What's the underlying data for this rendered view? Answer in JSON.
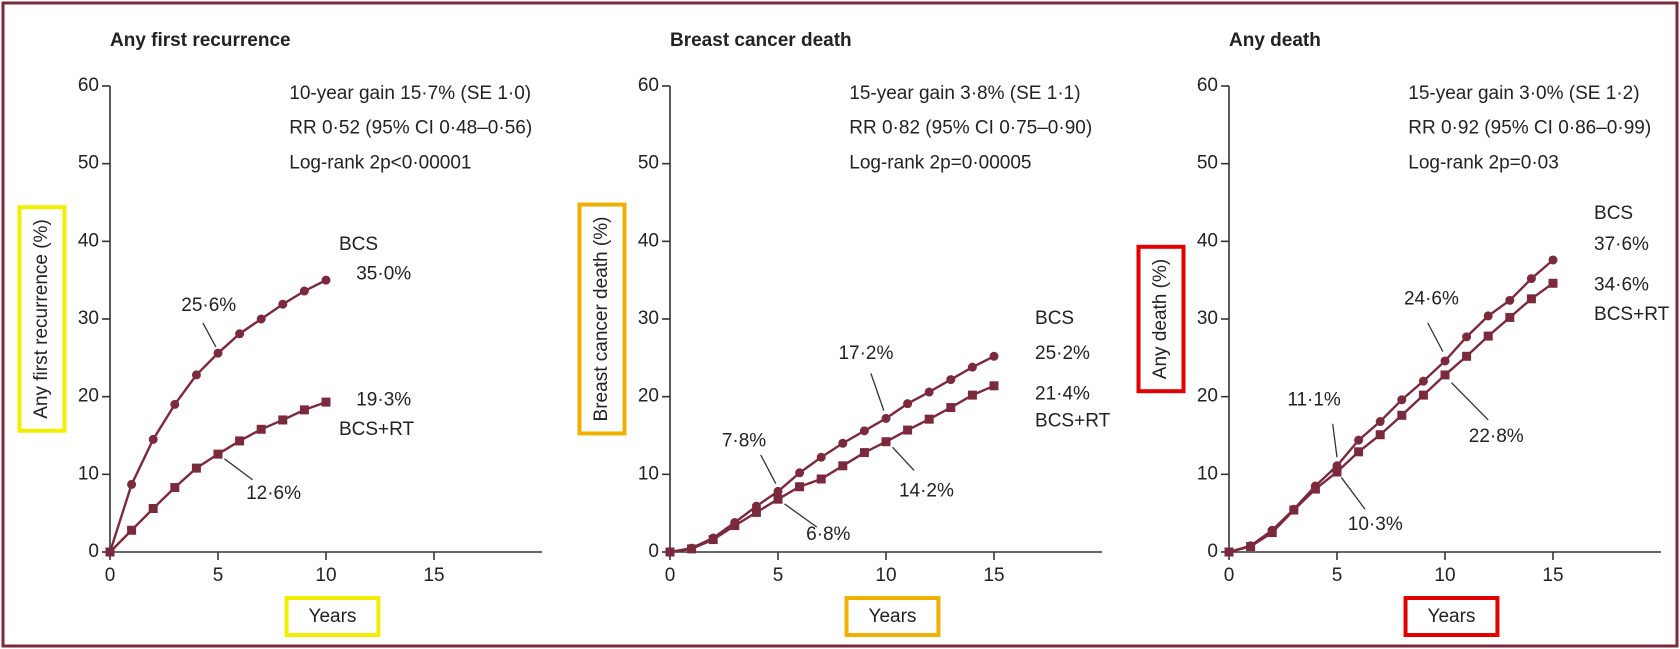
{
  "chart_data": [
    {
      "type": "line",
      "title": "Any first recurrence",
      "xlabel": "Years",
      "ylabel": "Any first recurrence (%)",
      "x": [
        0,
        1,
        2,
        3,
        4,
        5,
        6,
        7,
        8,
        9,
        10
      ],
      "xlim": [
        0,
        20
      ],
      "xticks": [
        0,
        5,
        10,
        15
      ],
      "ylim": [
        0,
        60
      ],
      "yticks": [
        0,
        10,
        20,
        30,
        40,
        50,
        60
      ],
      "series": [
        {
          "name": "BCS",
          "color": "#7a2a3c",
          "marker": "circle",
          "values": [
            0,
            8.7,
            14.5,
            19,
            22.8,
            25.6,
            28.1,
            30,
            31.9,
            33.6,
            35.0
          ]
        },
        {
          "name": "BCS+RT",
          "color": "#7a2a3c",
          "marker": "square",
          "values": [
            0,
            2.8,
            5.6,
            8.3,
            10.8,
            12.6,
            14.3,
            15.8,
            17,
            18.3,
            19.3
          ]
        }
      ],
      "stats": [
        "10-year gain 15·7% (SE 1·0)",
        "RR 0·52 (95% CI 0·48–0·56)",
        "Log-rank 2p<0·00001"
      ],
      "annotations": [
        "25·6%",
        "35·0%",
        "19·3%",
        "12·6%"
      ]
    },
    {
      "type": "line",
      "title": "Breast cancer death",
      "xlabel": "Years",
      "ylabel": "Breast cancer death (%)",
      "x": [
        0,
        1,
        2,
        3,
        4,
        5,
        6,
        7,
        8,
        9,
        10,
        11,
        12,
        13,
        14,
        15
      ],
      "xlim": [
        0,
        20
      ],
      "xticks": [
        0,
        5,
        10,
        15
      ],
      "ylim": [
        0,
        60
      ],
      "yticks": [
        0,
        10,
        20,
        30,
        40,
        50,
        60
      ],
      "series": [
        {
          "name": "BCS",
          "color": "#7a2a3c",
          "marker": "circle",
          "values": [
            0,
            0.5,
            1.8,
            3.8,
            5.9,
            7.8,
            10.2,
            12.2,
            14,
            15.6,
            17.2,
            19.1,
            20.6,
            22.2,
            23.8,
            25.2
          ]
        },
        {
          "name": "BCS+RT",
          "color": "#7a2a3c",
          "marker": "square",
          "values": [
            0,
            0.4,
            1.6,
            3.4,
            5.1,
            6.8,
            8.4,
            9.4,
            11.1,
            12.8,
            14.2,
            15.7,
            17.1,
            18.6,
            20.2,
            21.4
          ]
        }
      ],
      "stats": [
        "15-year gain 3·8% (SE 1·1)",
        "RR 0·82 (95% CI 0·75–0·90)",
        "Log-rank 2p=0·00005"
      ],
      "annotations": [
        "17·2%",
        "7·8%",
        "6·8%",
        "14·2%",
        "25·2%",
        "21·4%"
      ]
    },
    {
      "type": "line",
      "title": "Any death",
      "xlabel": "Years",
      "ylabel": "Any death (%)",
      "x": [
        0,
        1,
        2,
        3,
        4,
        5,
        6,
        7,
        8,
        9,
        10,
        11,
        12,
        13,
        14,
        15
      ],
      "xlim": [
        0,
        20
      ],
      "xticks": [
        0,
        5,
        10,
        15
      ],
      "ylim": [
        0,
        60
      ],
      "yticks": [
        0,
        10,
        20,
        30,
        40,
        50,
        60
      ],
      "series": [
        {
          "name": "BCS",
          "color": "#7a2a3c",
          "marker": "circle",
          "values": [
            0,
            0.8,
            2.8,
            5.5,
            8.5,
            11.1,
            14.4,
            16.8,
            19.6,
            22,
            24.6,
            27.7,
            30.4,
            32.4,
            35.2,
            37.6
          ]
        },
        {
          "name": "BCS+RT",
          "color": "#7a2a3c",
          "marker": "square",
          "values": [
            0,
            0.7,
            2.5,
            5.4,
            8.1,
            10.3,
            12.9,
            15.1,
            17.6,
            20.2,
            22.8,
            25.2,
            27.8,
            30.2,
            32.6,
            34.6
          ]
        }
      ],
      "stats": [
        "15-year gain 3·0% (SE 1·2)",
        "RR 0·92 (95% CI 0·86–0·99)",
        "Log-rank 2p=0·03"
      ],
      "annotations": [
        "24·6%",
        "11·1%",
        "10·3%",
        "22·8%",
        "37·6%",
        "34·6%"
      ]
    }
  ]
}
